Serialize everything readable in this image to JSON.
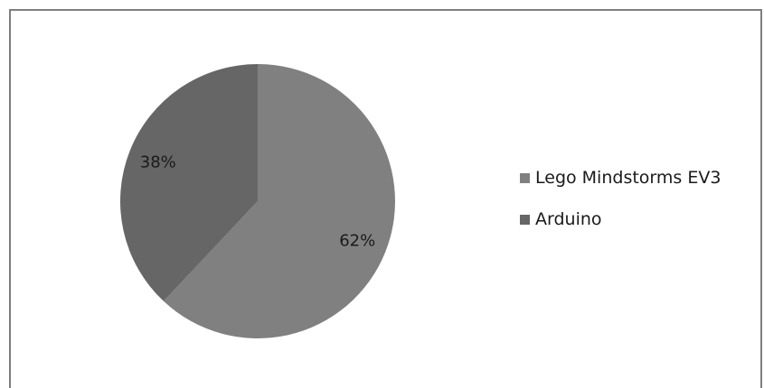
{
  "chart_data": {
    "type": "pie",
    "slices": [
      {
        "label": "Lego Mindstorms EV3",
        "value": 62,
        "display": "62%",
        "color": "#808080"
      },
      {
        "label": "Arduino",
        "value": 38,
        "display": "38%",
        "color": "#666666"
      }
    ],
    "legend_position": "right",
    "start": "top",
    "direction": "clockwise"
  }
}
